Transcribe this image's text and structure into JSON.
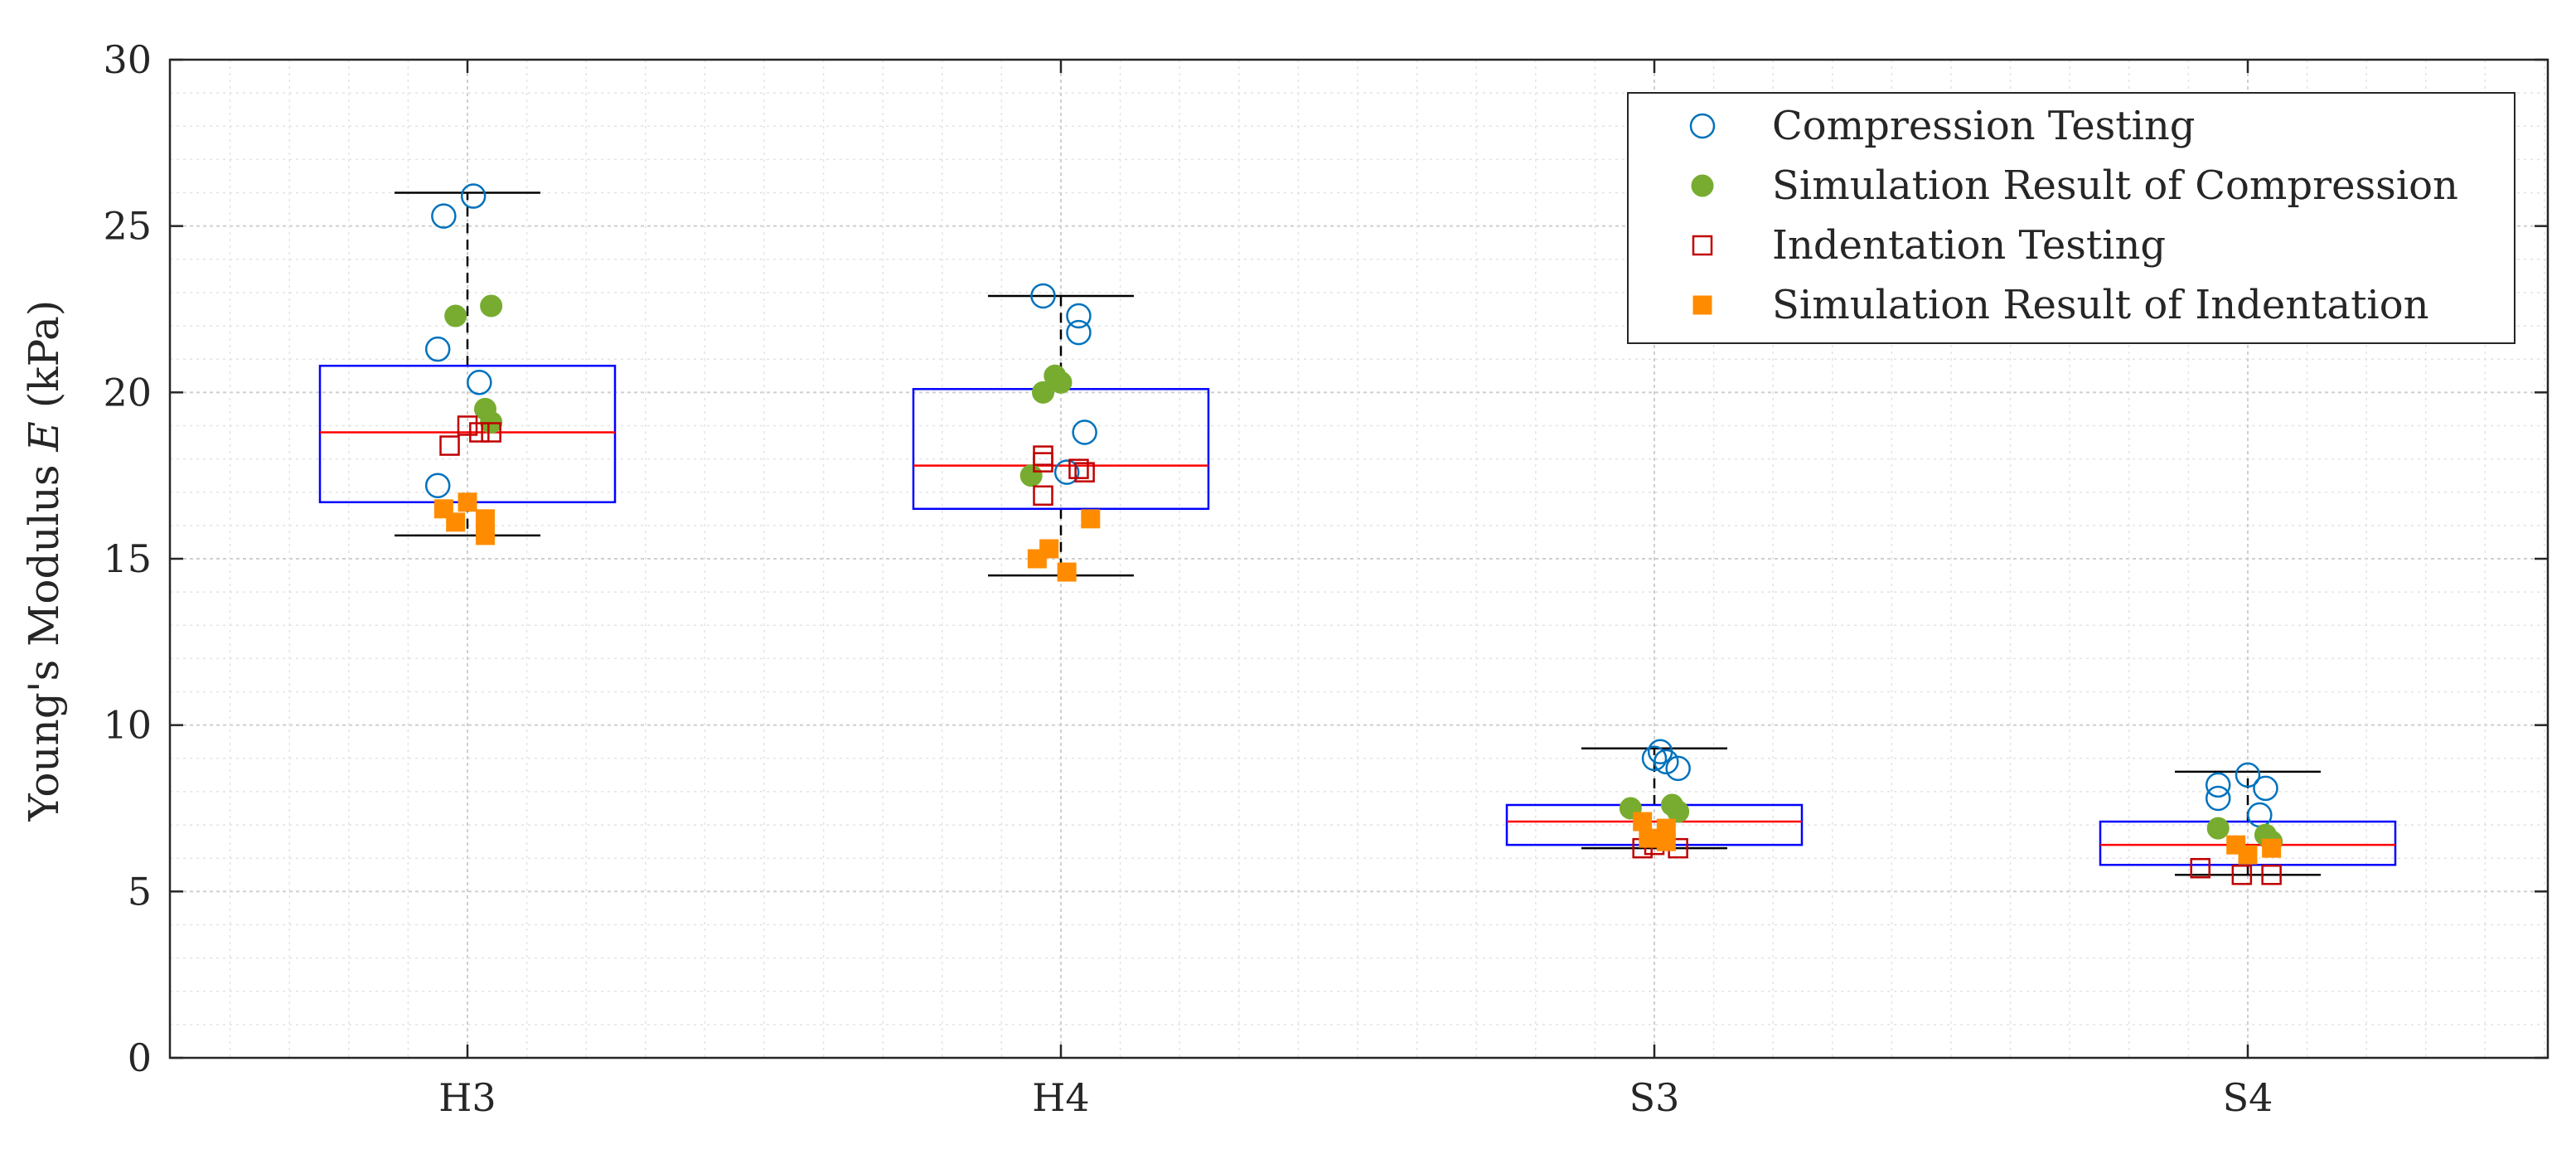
{
  "chart_data": {
    "type": "boxplot",
    "title": "",
    "xlabel": "",
    "ylabel": "Young's Modulus E (kPa)",
    "ylabel_parts": {
      "before": "Young's Modulus ",
      "symbol": "E",
      "after": " (kPa)"
    },
    "ylim": [
      0,
      30
    ],
    "yticks": [
      0,
      5,
      10,
      15,
      20,
      25,
      30
    ],
    "grid": true,
    "minor_grid": true,
    "legend_position": "top-right",
    "categories": [
      "H3",
      "H4",
      "S3",
      "S4"
    ],
    "boxes": [
      {
        "category": "H3",
        "whisker_low": 15.7,
        "q1": 16.7,
        "median": 18.8,
        "q3": 20.8,
        "whisker_high": 26.0
      },
      {
        "category": "H4",
        "whisker_low": 14.5,
        "q1": 16.5,
        "median": 17.8,
        "q3": 20.1,
        "whisker_high": 22.9
      },
      {
        "category": "S3",
        "whisker_low": 6.3,
        "q1": 6.4,
        "median": 7.1,
        "q3": 7.6,
        "whisker_high": 9.3
      },
      {
        "category": "S4",
        "whisker_low": 5.5,
        "q1": 5.8,
        "median": 6.4,
        "q3": 7.1,
        "whisker_high": 8.6
      }
    ],
    "series": [
      {
        "name": "Compression Testing",
        "marker": "open-circle",
        "color": "#0072BD",
        "points": [
          {
            "category": "H3",
            "offset": -0.04,
            "value": 25.3
          },
          {
            "category": "H3",
            "offset": 0.01,
            "value": 25.9
          },
          {
            "category": "H3",
            "offset": -0.05,
            "value": 21.3
          },
          {
            "category": "H3",
            "offset": 0.02,
            "value": 20.3
          },
          {
            "category": "H3",
            "offset": -0.05,
            "value": 17.2
          },
          {
            "category": "H4",
            "offset": -0.03,
            "value": 22.9
          },
          {
            "category": "H4",
            "offset": 0.03,
            "value": 22.3
          },
          {
            "category": "H4",
            "offset": 0.03,
            "value": 21.8
          },
          {
            "category": "H4",
            "offset": 0.04,
            "value": 18.8
          },
          {
            "category": "H4",
            "offset": 0.01,
            "value": 17.6
          },
          {
            "category": "S3",
            "offset": 0.01,
            "value": 9.2
          },
          {
            "category": "S3",
            "offset": 0.0,
            "value": 9.0
          },
          {
            "category": "S3",
            "offset": 0.02,
            "value": 8.9
          },
          {
            "category": "S3",
            "offset": 0.04,
            "value": 8.7
          },
          {
            "category": "S4",
            "offset": 0.0,
            "value": 8.5
          },
          {
            "category": "S4",
            "offset": -0.05,
            "value": 7.8
          },
          {
            "category": "S4",
            "offset": -0.05,
            "value": 8.2
          },
          {
            "category": "S4",
            "offset": 0.03,
            "value": 8.1
          },
          {
            "category": "S4",
            "offset": 0.02,
            "value": 7.3
          }
        ]
      },
      {
        "name": "Simulation Result of Compression",
        "marker": "filled-circle",
        "color": "#77AC30",
        "points": [
          {
            "category": "H3",
            "offset": -0.02,
            "value": 22.3
          },
          {
            "category": "H3",
            "offset": 0.04,
            "value": 22.6
          },
          {
            "category": "H3",
            "offset": 0.03,
            "value": 19.5
          },
          {
            "category": "H3",
            "offset": 0.04,
            "value": 19.1
          },
          {
            "category": "H4",
            "offset": -0.03,
            "value": 20.0
          },
          {
            "category": "H4",
            "offset": -0.01,
            "value": 20.5
          },
          {
            "category": "H4",
            "offset": 0.0,
            "value": 20.3
          },
          {
            "category": "H4",
            "offset": -0.05,
            "value": 17.5
          },
          {
            "category": "S3",
            "offset": -0.04,
            "value": 7.5
          },
          {
            "category": "S3",
            "offset": 0.03,
            "value": 7.6
          },
          {
            "category": "S3",
            "offset": 0.04,
            "value": 7.4
          },
          {
            "category": "S4",
            "offset": -0.05,
            "value": 6.9
          },
          {
            "category": "S4",
            "offset": 0.03,
            "value": 6.7
          },
          {
            "category": "S4",
            "offset": 0.04,
            "value": 6.5
          }
        ]
      },
      {
        "name": "Indentation Testing",
        "marker": "open-square",
        "color": "#C00000",
        "points": [
          {
            "category": "H3",
            "offset": 0.0,
            "value": 19.0
          },
          {
            "category": "H3",
            "offset": 0.02,
            "value": 18.8
          },
          {
            "category": "H3",
            "offset": 0.04,
            "value": 18.8
          },
          {
            "category": "H3",
            "offset": -0.03,
            "value": 18.4
          },
          {
            "category": "H4",
            "offset": -0.03,
            "value": 17.9
          },
          {
            "category": "H4",
            "offset": -0.03,
            "value": 18.1
          },
          {
            "category": "H4",
            "offset": 0.03,
            "value": 17.7
          },
          {
            "category": "H4",
            "offset": 0.04,
            "value": 17.6
          },
          {
            "category": "H4",
            "offset": -0.03,
            "value": 16.9
          },
          {
            "category": "S3",
            "offset": -0.02,
            "value": 6.3
          },
          {
            "category": "S3",
            "offset": 0.0,
            "value": 6.4
          },
          {
            "category": "S3",
            "offset": 0.04,
            "value": 6.3
          },
          {
            "category": "S4",
            "offset": -0.08,
            "value": 5.7
          },
          {
            "category": "S4",
            "offset": -0.01,
            "value": 5.5
          },
          {
            "category": "S4",
            "offset": 0.04,
            "value": 5.5
          }
        ]
      },
      {
        "name": "Simulation Result of Indentation",
        "marker": "filled-square",
        "color": "#FF8C00",
        "points": [
          {
            "category": "H3",
            "offset": -0.04,
            "value": 16.5
          },
          {
            "category": "H3",
            "offset": -0.02,
            "value": 16.1
          },
          {
            "category": "H3",
            "offset": 0.0,
            "value": 16.7
          },
          {
            "category": "H3",
            "offset": 0.03,
            "value": 16.2
          },
          {
            "category": "H3",
            "offset": 0.03,
            "value": 15.7
          },
          {
            "category": "H4",
            "offset": -0.04,
            "value": 15.0
          },
          {
            "category": "H4",
            "offset": -0.02,
            "value": 15.3
          },
          {
            "category": "H4",
            "offset": 0.01,
            "value": 14.6
          },
          {
            "category": "H4",
            "offset": 0.05,
            "value": 16.2
          },
          {
            "category": "S3",
            "offset": -0.02,
            "value": 7.1
          },
          {
            "category": "S3",
            "offset": -0.01,
            "value": 6.6
          },
          {
            "category": "S3",
            "offset": 0.02,
            "value": 6.9
          },
          {
            "category": "S3",
            "offset": 0.02,
            "value": 6.5
          },
          {
            "category": "S4",
            "offset": -0.02,
            "value": 6.4
          },
          {
            "category": "S4",
            "offset": 0.0,
            "value": 6.1
          },
          {
            "category": "S4",
            "offset": 0.04,
            "value": 6.3
          }
        ]
      }
    ]
  },
  "colors": {
    "box": "#0000FF",
    "median": "#FF0000",
    "whisker": "#000000",
    "grid": "#d9d9d9",
    "axis": "#262626"
  }
}
